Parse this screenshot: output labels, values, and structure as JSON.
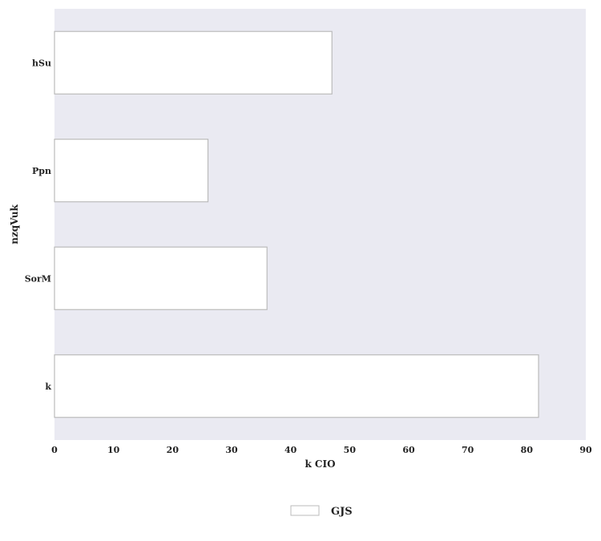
{
  "chart_data": {
    "type": "bar",
    "orientation": "horizontal",
    "title": "",
    "xlabel": "k CIO",
    "ylabel": "nzqVuk",
    "categories": [
      "hSu",
      "Ppn",
      "SorM",
      "k"
    ],
    "series": [
      {
        "name": "GJS",
        "values": [
          47,
          26,
          36,
          82
        ]
      }
    ],
    "xlim": [
      0,
      90
    ],
    "xticks": [
      0,
      10,
      20,
      30,
      40,
      50,
      60,
      70,
      80,
      90
    ],
    "grid": false,
    "legend": "bottom-center",
    "colors": {
      "plot_background": "#eaeaf2",
      "bar_fill": "#ffffff",
      "bar_edge": "#bbbbbb"
    }
  }
}
